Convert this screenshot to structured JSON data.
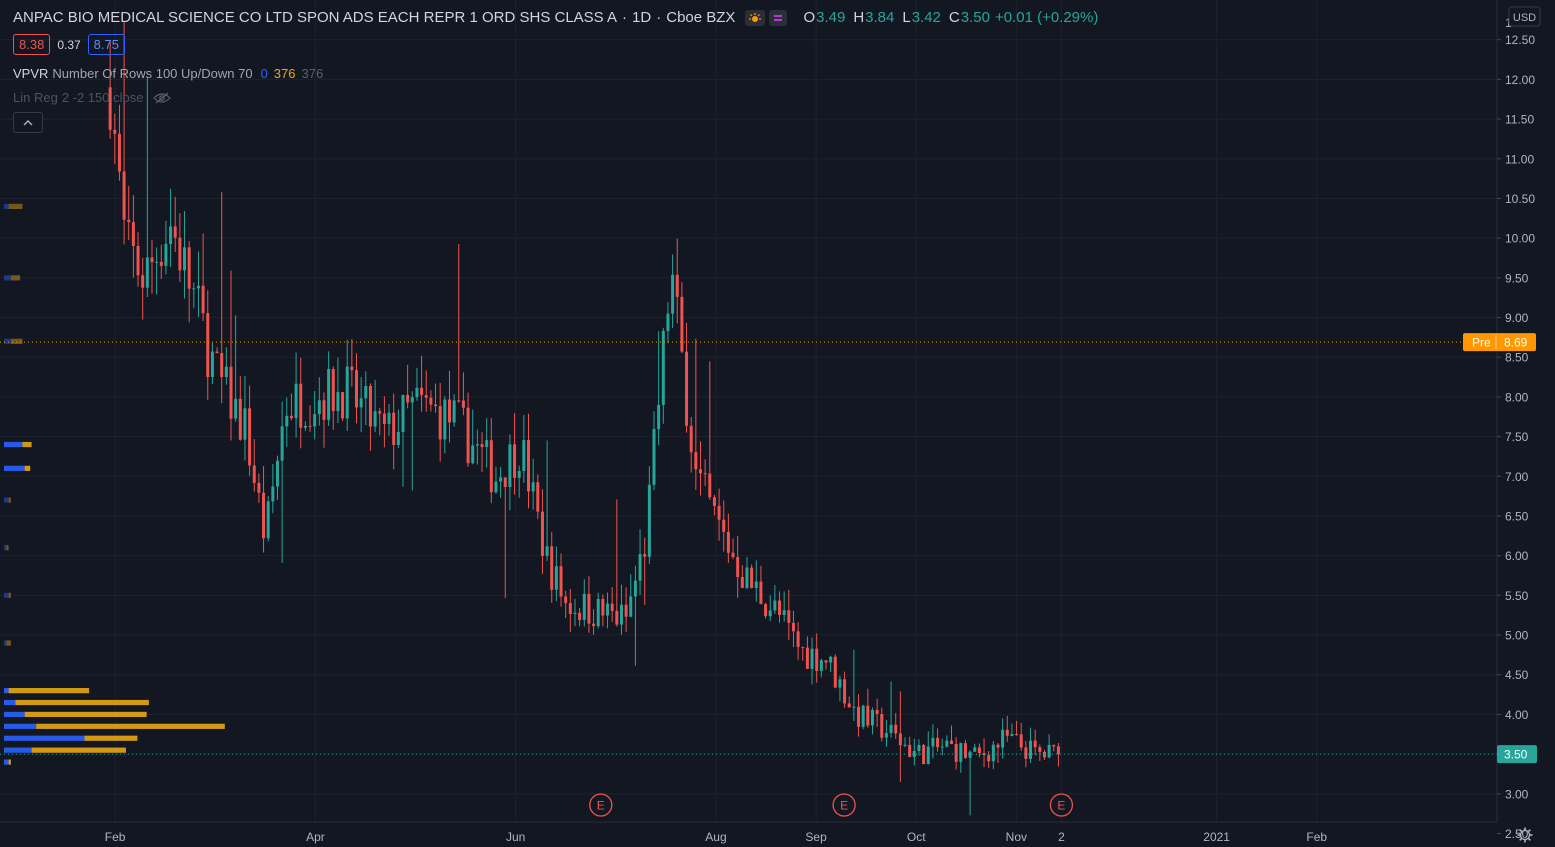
{
  "header": {
    "symbol_description": "ANPAC BIO MEDICAL SCIENCE CO LTD SPON ADS EACH REPR 1 ORD SHS CLASS A",
    "interval": "1D",
    "exchange": "Cboe BZX",
    "ohlc": {
      "open_label": "O",
      "open": "3.49",
      "high_label": "H",
      "high": "3.84",
      "low_label": "L",
      "low": "3.42",
      "close_label": "C",
      "close": "3.50",
      "change": "+0.01 (+0.29%)"
    },
    "bid": "8.38",
    "spread": "0.37",
    "ask": "8.75"
  },
  "indicators": {
    "vpvr": {
      "name": "VPVR",
      "params": "Number Of Rows 100 Up/Down 70",
      "up": "0",
      "down": "376",
      "total": "376"
    },
    "linreg": {
      "name": "Lin Reg",
      "params": "2 -2 150 close"
    }
  },
  "chart_data": {
    "type": "candlestick",
    "currency": "USD",
    "y_ticks": [
      "12.50",
      "12.00",
      "11.50",
      "11.00",
      "10.50",
      "10.00",
      "9.50",
      "9.00",
      "8.50",
      "8.00",
      "7.50",
      "7.00",
      "6.50",
      "6.00",
      "5.50",
      "5.00",
      "4.50",
      "4.00",
      "3.50",
      "3.00",
      "2.50"
    ],
    "y_top_partial_label": "1",
    "ylim": [
      2.33,
      13.0
    ],
    "x_labels": [
      {
        "label": "Feb",
        "month_index": 1
      },
      {
        "label": "Apr",
        "month_index": 3
      },
      {
        "label": "Jun",
        "month_index": 5
      },
      {
        "label": "Aug",
        "month_index": 7
      },
      {
        "label": "Sep",
        "month_index": 8
      },
      {
        "label": "Oct",
        "month_index": 9
      },
      {
        "label": "Nov",
        "month_index": 10
      },
      {
        "label": "2",
        "month_index": 10.45
      },
      {
        "label": "2021",
        "month_index": 12
      },
      {
        "label": "Feb",
        "month_index": 13
      }
    ],
    "x_month_range": [
      -0.15,
      14.8
    ],
    "up_color": "#26a69a",
    "down_color": "#ef5350",
    "grid": true,
    "pre_market": {
      "label": "Pre",
      "value": "8.69",
      "color": "#ff9800"
    },
    "last_price": {
      "value": "3.50",
      "color": "#26a69a"
    },
    "earnings_markers": [
      {
        "label": "E",
        "month_index": 5.85
      },
      {
        "label": "E",
        "month_index": 8.28
      },
      {
        "label": "E",
        "month_index": 10.45
      }
    ],
    "price_path": [
      [
        0.95,
        11.9
      ],
      [
        1.1,
        9.9
      ],
      [
        1.3,
        9.5
      ],
      [
        1.55,
        10.2
      ],
      [
        1.8,
        9.2
      ],
      [
        2.0,
        8.3
      ],
      [
        2.3,
        7.6
      ],
      [
        2.5,
        6.2
      ],
      [
        2.7,
        7.9
      ],
      [
        3.0,
        8.0
      ],
      [
        3.3,
        8.1
      ],
      [
        3.7,
        7.5
      ],
      [
        4.0,
        7.9
      ],
      [
        4.4,
        7.7
      ],
      [
        4.8,
        7.0
      ],
      [
        5.05,
        7.4
      ],
      [
        5.3,
        6.0
      ],
      [
        5.5,
        5.4
      ],
      [
        5.8,
        5.3
      ],
      [
        6.1,
        5.2
      ],
      [
        6.3,
        6.2
      ],
      [
        6.55,
        9.6
      ],
      [
        6.8,
        7.0
      ],
      [
        7.05,
        6.3
      ],
      [
        7.3,
        5.7
      ],
      [
        7.6,
        5.3
      ],
      [
        7.85,
        4.8
      ],
      [
        8.1,
        4.7
      ],
      [
        8.4,
        4.0
      ],
      [
        8.7,
        3.8
      ],
      [
        9.0,
        3.5
      ],
      [
        9.3,
        3.6
      ],
      [
        9.6,
        3.45
      ],
      [
        9.9,
        3.7
      ],
      [
        10.2,
        3.5
      ],
      [
        10.42,
        3.5
      ]
    ],
    "volume_profile": {
      "price_bins": [
        10.4,
        9.5,
        8.7,
        7.4,
        7.1,
        6.7,
        6.1,
        5.5,
        4.9,
        4.3,
        4.15,
        4.0,
        3.85,
        3.7,
        3.55,
        3.4
      ],
      "up_volume": [
        0.02,
        0.03,
        0.03,
        0.08,
        0.09,
        0.02,
        0.01,
        0.02,
        0.01,
        0.02,
        0.05,
        0.09,
        0.14,
        0.35,
        0.12,
        0.02
      ],
      "down_volume": [
        0.08,
        0.07,
        0.08,
        0.12,
        0.08,
        0.03,
        0.02,
        0.03,
        0.03,
        0.37,
        0.63,
        0.62,
        0.96,
        0.58,
        0.53,
        0.03
      ]
    }
  }
}
